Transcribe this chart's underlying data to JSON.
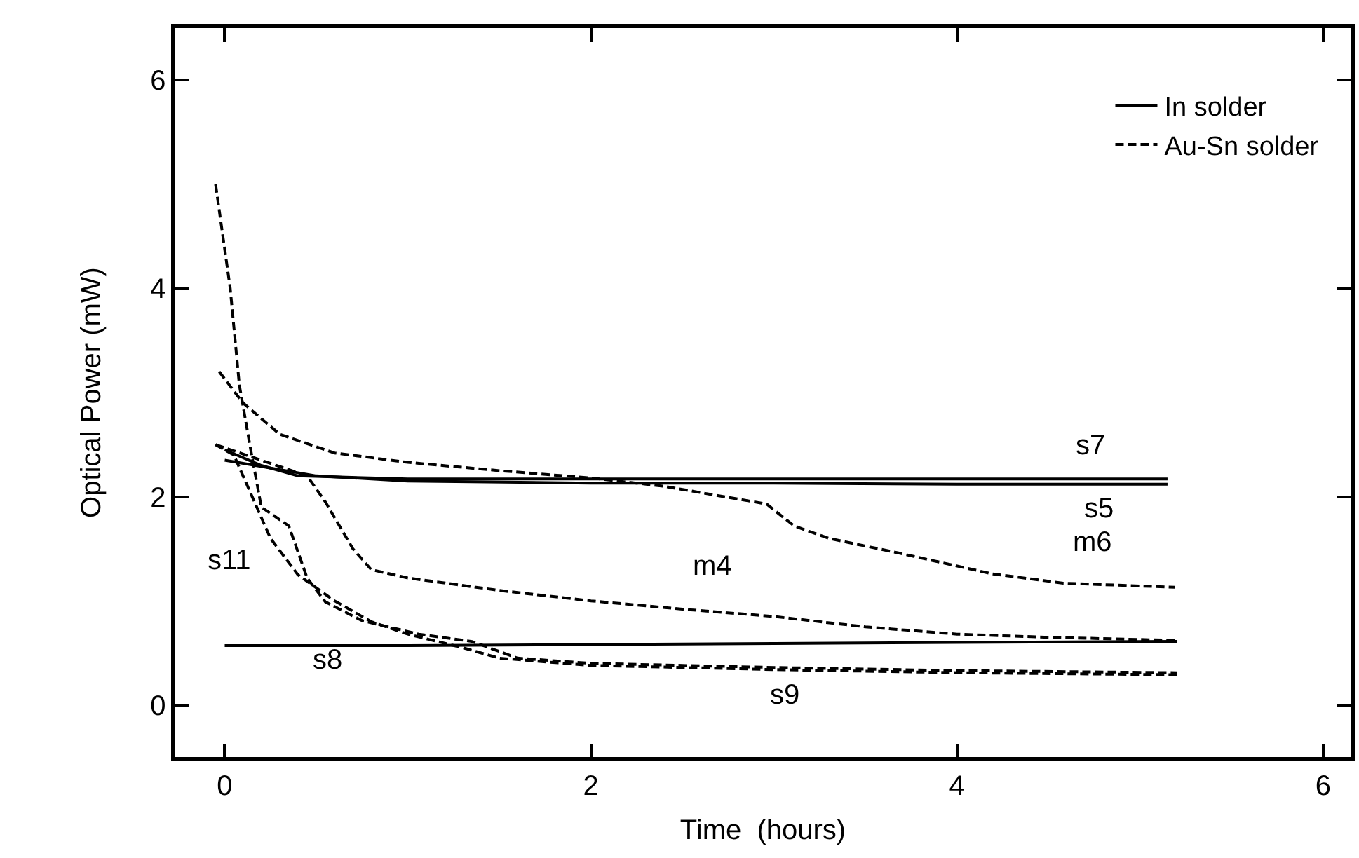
{
  "chart_data": {
    "type": "line",
    "xlabel": "Time  (hours)",
    "ylabel": "Optical Power (mW)",
    "xlim": [
      -0.27,
      6.15
    ],
    "ylim": [
      -0.5,
      6.5
    ],
    "xticks": [
      0,
      2,
      4,
      6
    ],
    "yticks": [
      0,
      2,
      4,
      6
    ],
    "grid": false,
    "legend": "top right",
    "marker": "none",
    "series": [
      {
        "name": "In solder",
        "color": "#000000",
        "line_style": "solid",
        "x": [
          0,
          0.2,
          0.4,
          1,
          2,
          3,
          4,
          5.15
        ],
        "values": [
          2.45,
          2.3,
          2.2,
          2.17,
          2.17,
          2.17,
          2.17,
          2.17
        ]
      },
      {
        "color": "#000000",
        "line_style": "solid",
        "x": [
          0,
          0.5,
          1,
          2,
          3,
          4,
          5.15
        ],
        "values": [
          2.35,
          2.2,
          2.15,
          2.13,
          2.13,
          2.12,
          2.12
        ]
      },
      {
        "color": "#000000",
        "line_style": "solid",
        "x": [
          0,
          1,
          2,
          3,
          4,
          5.2
        ],
        "values": [
          0.57,
          0.57,
          0.58,
          0.59,
          0.6,
          0.61
        ]
      },
      {
        "name": "Au-Sn solder",
        "color": "#000000",
        "line_style": "dashed",
        "x": [
          -0.03,
          0.1,
          0.3,
          0.6,
          1,
          1.5,
          2,
          2.4,
          2.96,
          3.11,
          3.3,
          3.68,
          4.19,
          4.58,
          5.19
        ],
        "values": [
          3.2,
          2.9,
          2.6,
          2.42,
          2.33,
          2.25,
          2.18,
          2.1,
          1.93,
          1.72,
          1.6,
          1.46,
          1.26,
          1.17,
          1.13
        ]
      },
      {
        "color": "#000000",
        "line_style": "dashed",
        "x": [
          -0.05,
          0.2,
          0.45,
          0.55,
          0.7,
          0.8,
          1,
          1.5,
          2,
          2.5,
          3,
          3.5,
          4,
          4.5,
          5.2
        ],
        "values": [
          2.5,
          2.35,
          2.2,
          1.95,
          1.5,
          1.3,
          1.22,
          1.1,
          1.0,
          0.92,
          0.85,
          0.75,
          0.68,
          0.65,
          0.62
        ]
      },
      {
        "color": "#000000",
        "line_style": "dashed",
        "x": [
          -0.05,
          0.03,
          0.08,
          0.14,
          0.2,
          0.35,
          0.45,
          0.55,
          0.75,
          1.06,
          1.35,
          1.6,
          2,
          3,
          4,
          5.2
        ],
        "values": [
          5.0,
          4.0,
          3.07,
          2.47,
          1.9,
          1.72,
          1.22,
          0.99,
          0.81,
          0.68,
          0.61,
          0.45,
          0.4,
          0.36,
          0.33,
          0.31
        ]
      },
      {
        "color": "#000000",
        "line_style": "dashed",
        "x": [
          -0.05,
          0.05,
          0.15,
          0.25,
          0.4,
          0.6,
          0.8,
          1,
          1.3,
          1.5,
          2,
          3,
          4,
          5.2
        ],
        "values": [
          2.5,
          2.4,
          2.0,
          1.6,
          1.25,
          1.0,
          0.8,
          0.68,
          0.55,
          0.45,
          0.38,
          0.34,
          0.31,
          0.29
        ]
      }
    ],
    "annotations": [
      "s7",
      "s5",
      "m6",
      "m4",
      "s11",
      "s8",
      "s9"
    ]
  }
}
